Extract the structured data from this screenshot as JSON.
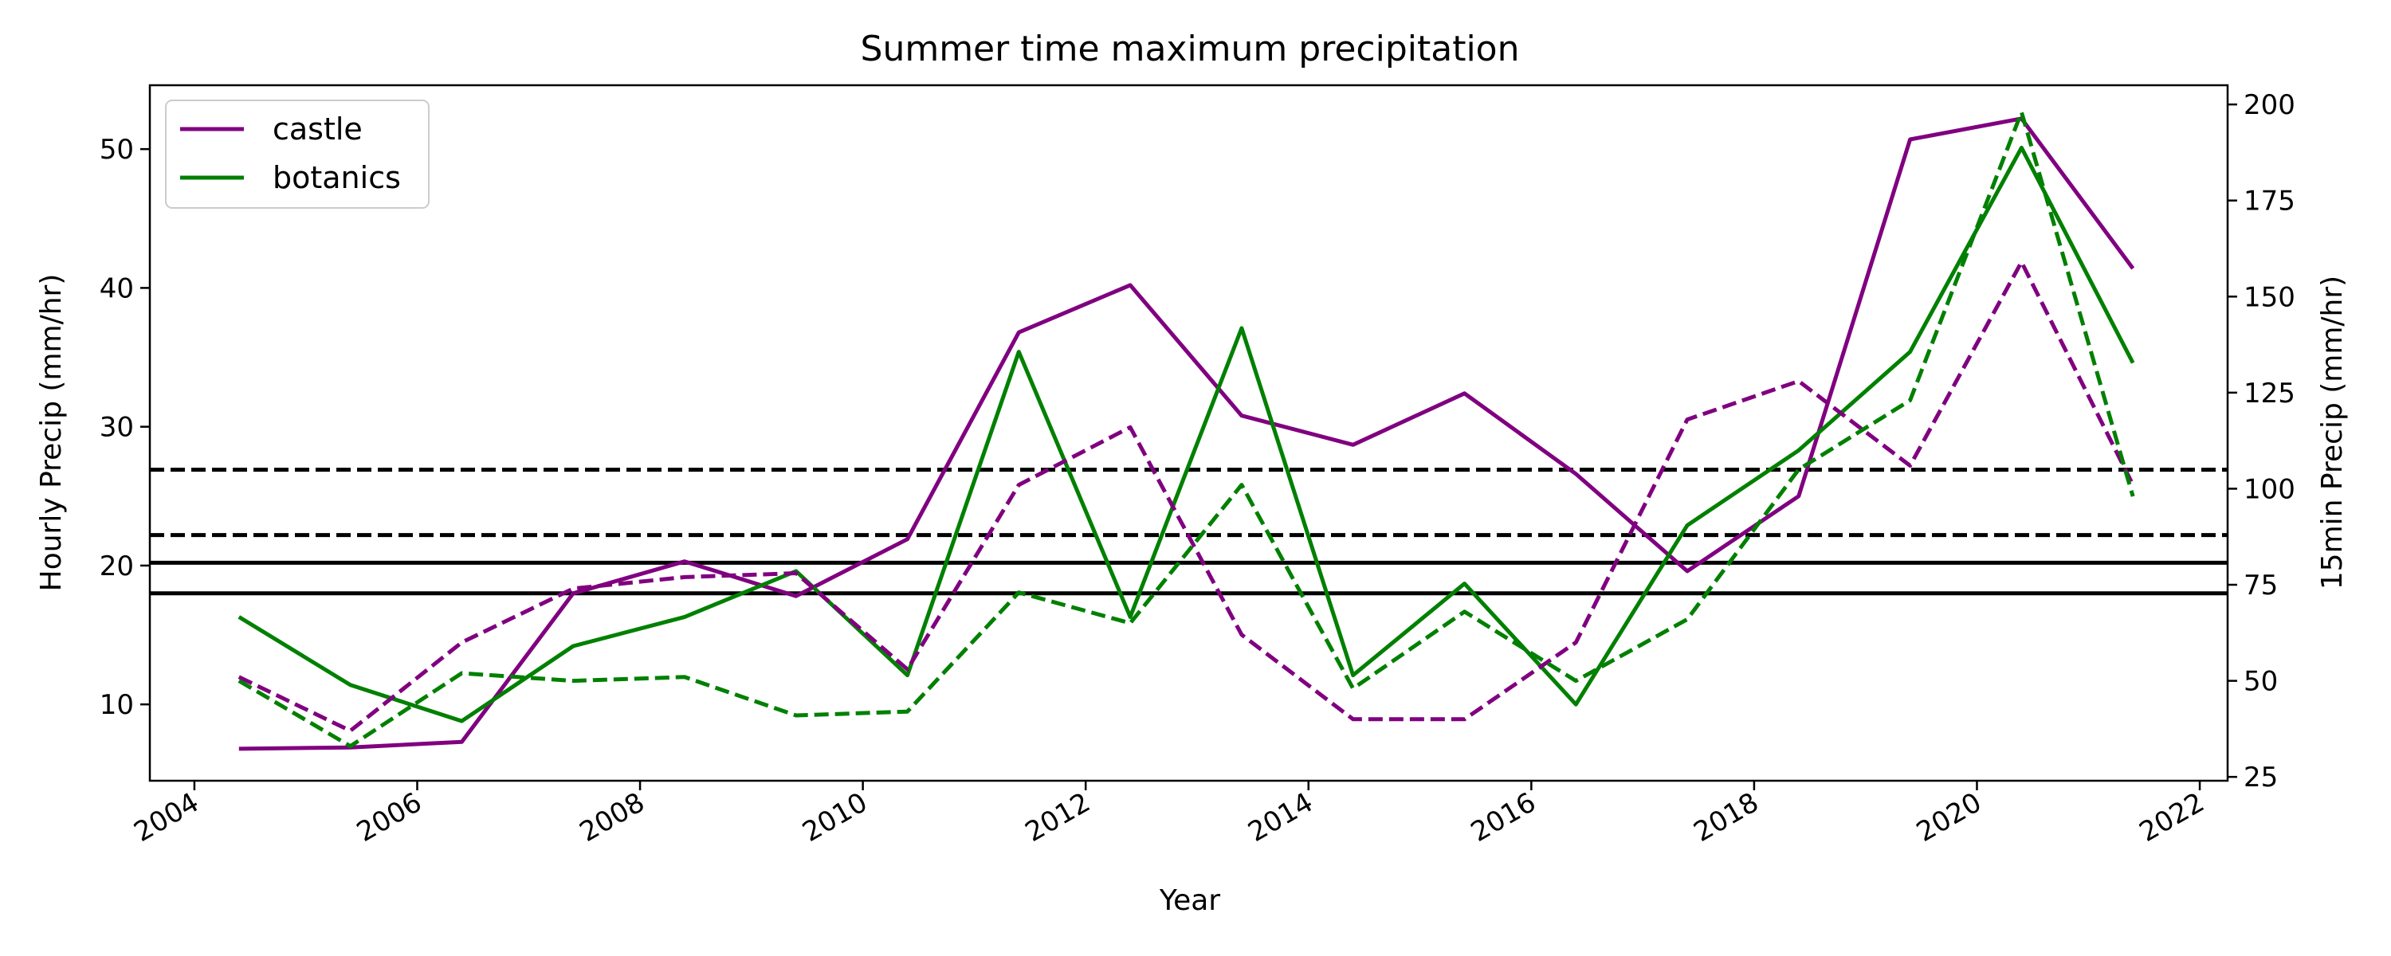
{
  "chart_data": {
    "type": "line",
    "title": "Summer time maximum precipitation",
    "xlabel": "Year",
    "ylabel_left": "Hourly Precip (mm/hr)",
    "ylabel_right": "15min Precip (mm/hr)",
    "xlim": [
      2003.6,
      2022.25
    ],
    "ylim_left": [
      4.5,
      54.6
    ],
    "ylim_right": [
      24.0,
      205.0
    ],
    "x_ticks": [
      2004,
      2006,
      2008,
      2010,
      2012,
      2014,
      2016,
      2018,
      2020,
      2022
    ],
    "y_ticks_left": [
      10,
      20,
      30,
      40,
      50
    ],
    "y_ticks_right": [
      25,
      50,
      75,
      100,
      125,
      150,
      175,
      200
    ],
    "x": [
      2004.4,
      2005.4,
      2006.4,
      2007.4,
      2008.4,
      2009.4,
      2010.4,
      2011.4,
      2012.4,
      2013.4,
      2014.4,
      2015.4,
      2016.4,
      2017.4,
      2018.4,
      2019.4,
      2020.4,
      2021.4
    ],
    "legend": {
      "position": "top-left",
      "entries": [
        "castle",
        "botanics"
      ]
    },
    "grid": false,
    "series": [
      {
        "name": "castle",
        "axis": "left",
        "style": "solid",
        "color": "#800080",
        "values": [
          6.8,
          6.9,
          7.3,
          18.0,
          20.3,
          17.8,
          21.9,
          36.8,
          40.2,
          30.8,
          28.7,
          32.4,
          26.6,
          19.6,
          25.0,
          50.7,
          52.2,
          41.4
        ]
      },
      {
        "name": "botanics",
        "axis": "left",
        "style": "solid",
        "color": "#008000",
        "values": [
          16.3,
          11.4,
          8.8,
          14.2,
          16.3,
          19.6,
          12.1,
          35.4,
          16.3,
          37.1,
          12.1,
          18.7,
          10.0,
          22.9,
          28.3,
          35.4,
          50.1,
          34.6
        ]
      },
      {
        "axis": "right",
        "style": "dashed",
        "color": "#800080",
        "values": [
          51,
          37,
          60,
          74,
          77,
          78,
          53,
          101,
          116,
          62,
          40,
          40,
          60,
          118,
          128,
          106,
          159,
          101
        ]
      },
      {
        "axis": "right",
        "style": "dashed",
        "color": "#008000",
        "values": [
          50,
          33,
          52,
          50,
          51,
          41,
          42,
          73,
          65,
          101,
          48,
          68,
          50,
          66,
          105,
          123,
          198,
          98
        ]
      }
    ],
    "reference_lines": [
      {
        "axis": "left",
        "value": 26.9,
        "style": "dashed",
        "color": "#000000"
      },
      {
        "axis": "left",
        "value": 22.2,
        "style": "dashed",
        "color": "#000000"
      },
      {
        "axis": "left",
        "value": 20.2,
        "style": "solid",
        "color": "#000000"
      },
      {
        "axis": "left",
        "value": 18.0,
        "style": "solid",
        "color": "#000000"
      }
    ]
  }
}
